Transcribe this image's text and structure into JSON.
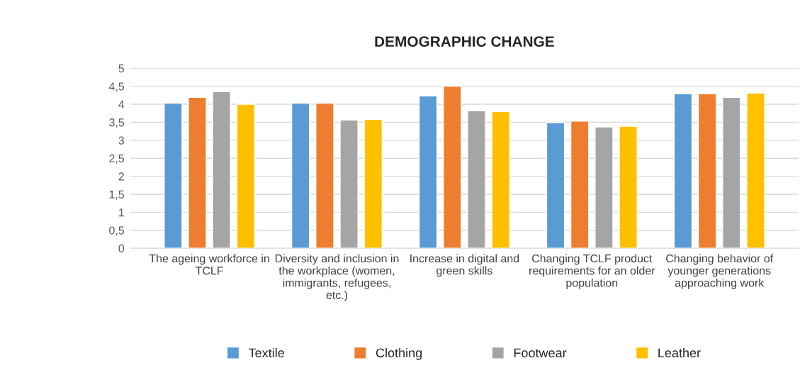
{
  "chart_data": {
    "type": "bar",
    "title": "DEMOGRAPHIC CHANGE",
    "categories": [
      "The ageing workforce in TCLF",
      "Diversity and inclusion in the workplace (women, immigrants, refugees, etc.)",
      "Increase in digital and green skills",
      "Changing TCLF product requirements for an older population",
      "Changing behavior of younger generations approaching work"
    ],
    "series": [
      {
        "name": "Textile",
        "color": "#5b9bd5",
        "values": [
          4.03,
          4.03,
          4.23,
          3.49,
          4.29
        ]
      },
      {
        "name": "Clothing",
        "color": "#ed7d31",
        "values": [
          4.19,
          4.03,
          4.5,
          3.53,
          4.29
        ]
      },
      {
        "name": "Footwear",
        "color": "#a5a5a5",
        "values": [
          4.35,
          3.56,
          3.82,
          3.37,
          4.19
        ]
      },
      {
        "name": "Leather",
        "color": "#ffc000",
        "values": [
          4.0,
          3.58,
          3.8,
          3.39,
          4.31
        ]
      }
    ],
    "ylim": [
      0,
      5
    ],
    "yticks": [
      0,
      {
        "value": 0.5,
        "label": "0,5"
      },
      1,
      {
        "value": 1.5,
        "label": "1,5"
      },
      2,
      {
        "value": 2.5,
        "label": "2,5"
      },
      3,
      {
        "value": 3.5,
        "label": "3,5"
      },
      4,
      {
        "value": 4.5,
        "label": "4,5"
      },
      5
    ],
    "grid": "y",
    "legend": "bottom"
  }
}
